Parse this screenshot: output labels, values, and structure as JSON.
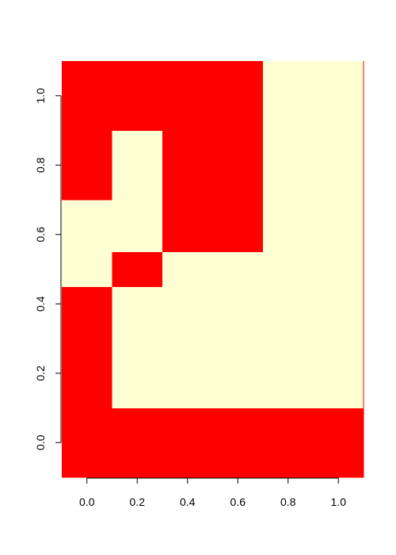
{
  "chart_data": {
    "type": "heatmap",
    "title": "",
    "xlabel": "",
    "ylabel": "",
    "x": [
      0.0,
      0.2,
      0.4,
      0.6,
      0.8,
      1.0
    ],
    "y": [
      0.0,
      0.2,
      0.4,
      0.6,
      0.8,
      1.0
    ],
    "xlim": [
      -0.1,
      1.1
    ],
    "ylim": [
      -0.1,
      1.1
    ],
    "x_ticks": [
      "0.0",
      "0.2",
      "0.4",
      "0.6",
      "0.8",
      "1.0"
    ],
    "y_ticks": [
      "0.0",
      "0.2",
      "0.4",
      "0.6",
      "0.8",
      "1.0"
    ],
    "values": [
      [
        1,
        1,
        1,
        1,
        1,
        1
      ],
      [
        1,
        0,
        0,
        0,
        0,
        0
      ],
      [
        1,
        0,
        0,
        0,
        0,
        0
      ],
      [
        0,
        1,
        0,
        0,
        0,
        0
      ],
      [
        0,
        0,
        1,
        1,
        0,
        0
      ],
      [
        1,
        0,
        1,
        1,
        0,
        0
      ],
      [
        1,
        1,
        1,
        1,
        0,
        0
      ]
    ],
    "value_rows_note_y": [
      0.0,
      0.2,
      0.4,
      0.5,
      0.6,
      0.8,
      1.0
    ],
    "colors": {
      "1": "#ff0000",
      "0": "#ffffd4"
    },
    "grid": false,
    "legend": "none"
  }
}
